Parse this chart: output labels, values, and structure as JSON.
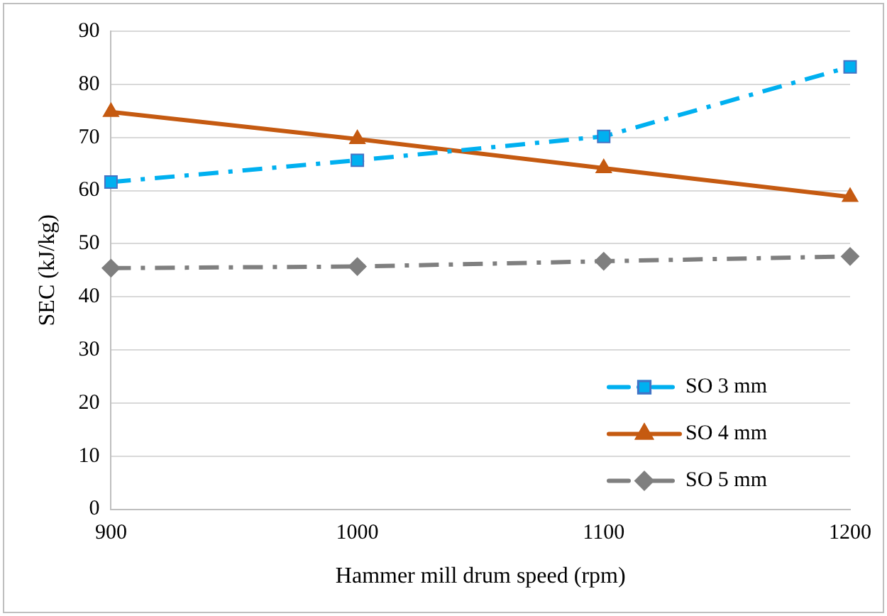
{
  "chart_data": {
    "type": "line",
    "xlabel": "Hammer mill drum speed (rpm)",
    "ylabel": "SEC (kJ/kg)",
    "categories": [
      "900",
      "1000",
      "1100",
      "1200"
    ],
    "series": [
      {
        "name": "SO 3 mm",
        "color": "#00b0f0",
        "values": [
          61.6,
          65.7,
          70.2,
          83.3
        ],
        "marker": "square",
        "line_style": "dashed"
      },
      {
        "name": "SO 4 mm",
        "color": "#c55a11",
        "values": [
          74.8,
          69.7,
          64.2,
          58.8
        ],
        "marker": "triangle",
        "line_style": "solid"
      },
      {
        "name": "SO 5 mm",
        "color": "#7f7f7f",
        "values": [
          45.4,
          45.7,
          46.7,
          47.6
        ],
        "marker": "diamond",
        "line_style": "dashed"
      }
    ],
    "ylim": [
      0,
      90
    ],
    "yticks": [
      0,
      10,
      20,
      30,
      40,
      50,
      60,
      70,
      80,
      90
    ],
    "grid": "y",
    "legend": "bottom right"
  }
}
